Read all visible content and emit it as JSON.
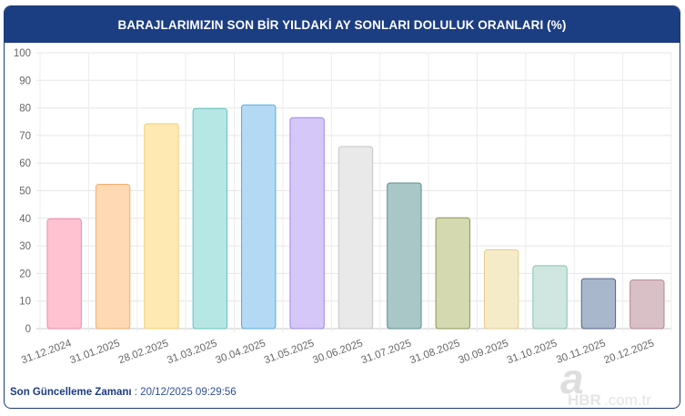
{
  "header": {
    "title": "BARAJLARIMIZIN SON BİR YILDAKİ AY SONLARI DOLULUK ORANLARI (%)"
  },
  "footer": {
    "label": "Son Güncelleme Zamanı",
    "separator": " : ",
    "value": "20/12/2025 09:29:56"
  },
  "watermark": {
    "brand": "a",
    "text": "HBR",
    "suffix": ".com.tr"
  },
  "chart_data": {
    "type": "bar",
    "title": "BARAJLARIMIZIN SON BİR YILDAKİ AY SONLARI DOLULUK ORANLARI (%)",
    "categories": [
      "31.12.2024",
      "31.01.2025",
      "28.02.2025",
      "31.03.2025",
      "30.04.2025",
      "31.05.2025",
      "30.06.2025",
      "31.07.2025",
      "31.08.2025",
      "30.09.2025",
      "31.10.2025",
      "30.11.2025",
      "20.12.2025"
    ],
    "values": [
      39.8,
      52.3,
      74.3,
      79.8,
      81.1,
      76.5,
      66.0,
      52.8,
      40.2,
      28.6,
      22.8,
      18.1,
      17.6
    ],
    "ylim": [
      0,
      100
    ],
    "yticks": [
      "0",
      "10",
      "20",
      "30",
      "40",
      "50",
      "60",
      "70",
      "80",
      "90",
      "100"
    ],
    "grid": true,
    "fill_colors": [
      "#ffc2d1",
      "#ffd9b3",
      "#ffe9b3",
      "#b7e7e5",
      "#b3d9f5",
      "#d6c7f9",
      "#e9e9e9",
      "#a9c7c7",
      "#d5d9b0",
      "#f6ebc9",
      "#cfe7e0",
      "#a9b7cd",
      "#d9c0c7"
    ],
    "stroke_colors": [
      "#f08aa6",
      "#f2ad6c",
      "#f0cf73",
      "#62c3bd",
      "#5aa9e0",
      "#9f84e6",
      "#c6c6c6",
      "#5e8c8c",
      "#8c9455",
      "#e3cc8a",
      "#86c1ad",
      "#4f6587",
      "#b48592"
    ]
  }
}
